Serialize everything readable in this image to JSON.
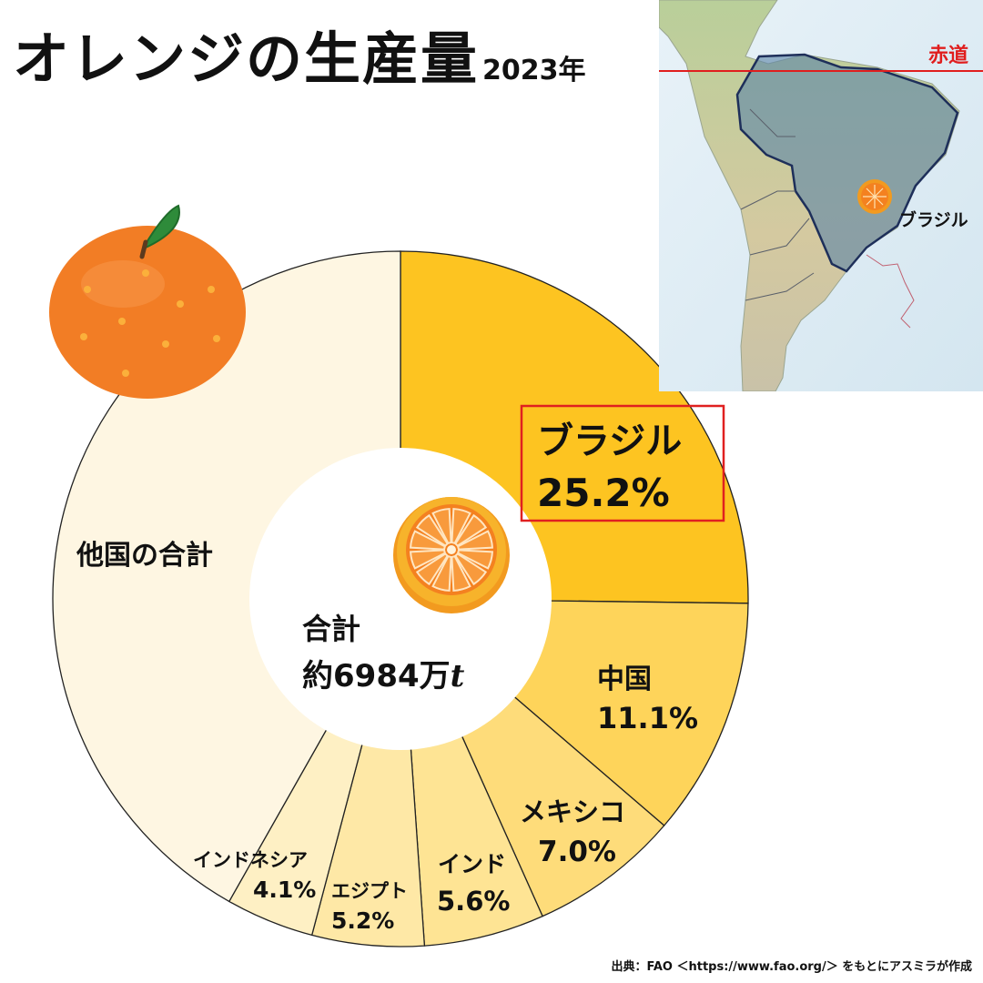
{
  "header": {
    "title": "オレンジの生産量",
    "year": "2023年"
  },
  "chart_data": {
    "type": "pie",
    "variant": "donut",
    "categories": [
      "ブラジル",
      "中国",
      "メキシコ",
      "インド",
      "エジプト",
      "インドネシア",
      "他国の合計"
    ],
    "values": [
      25.2,
      11.1,
      7.0,
      5.6,
      5.2,
      4.1,
      41.8
    ],
    "value_labels": [
      "25.2%",
      "11.1%",
      "7.0%",
      "5.6%",
      "5.2%",
      "4.1%",
      ""
    ],
    "colors": [
      "#FDC421",
      "#FED45A",
      "#FEDC7A",
      "#FEE494",
      "#FEE8A6",
      "#FEF0C4",
      "#FEF6E2"
    ],
    "highlight": "ブラジル",
    "center_label": [
      "合計",
      "約6984万",
      "t"
    ]
  },
  "map": {
    "equator_label": "赤道",
    "country_label": "ブラジル"
  },
  "source": "出典：FAO ＜https://www.fao.org/＞ をもとにアスミラが作成"
}
